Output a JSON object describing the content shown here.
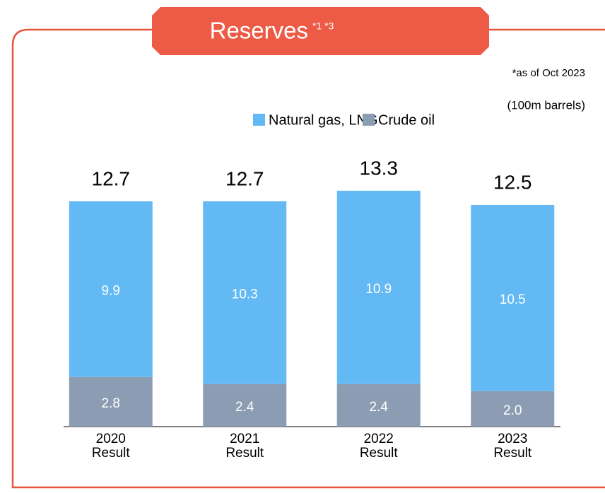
{
  "chart_data": {
    "type": "stacked-bar",
    "title": "Reserves",
    "title_note": "*1 *3",
    "notes": [
      "*as of Oct 2023",
      "(100m barrels)"
    ],
    "categories": [
      "2020 Result",
      "2021 Result",
      "2022 Result",
      "2023 Result"
    ],
    "series": [
      {
        "name": "Crude oil",
        "color": "#8c9db3",
        "values": [
          2.8,
          2.4,
          2.4,
          2.0
        ],
        "value_labels": [
          "2.8",
          "2.4",
          "2.4",
          "2.0"
        ]
      },
      {
        "name": "Natural gas, LNG",
        "color": "#63b9f3",
        "values": [
          9.9,
          10.3,
          10.9,
          10.5
        ]
      }
    ],
    "totals": [
      12.7,
      12.7,
      13.3,
      12.5
    ]
  }
}
